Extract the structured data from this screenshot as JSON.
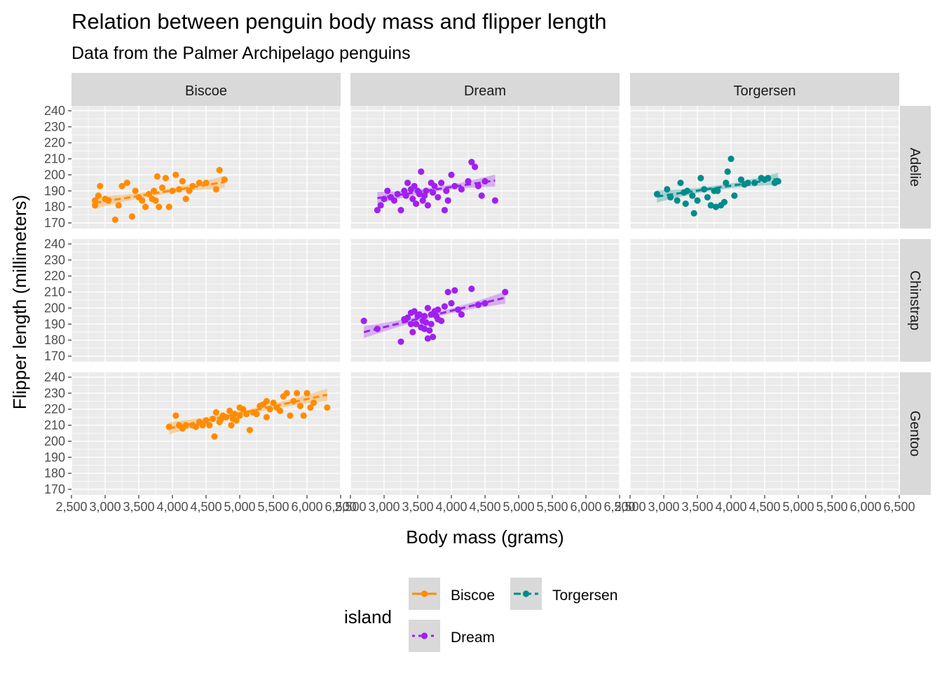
{
  "chart_data": {
    "type": "scatter",
    "title": "Relation between penguin body mass and flipper length",
    "subtitle": "Data from the Palmer Archipelago penguins",
    "xlabel": "Body mass (grams)",
    "ylabel": "Flipper length (millimeters)",
    "xlim": [
      2500,
      6500
    ],
    "ylim": [
      170,
      240
    ],
    "x_ticks": [
      2500,
      3000,
      3500,
      4000,
      4500,
      5000,
      5500,
      6000,
      6500
    ],
    "x_tick_labels": [
      "2,500",
      "3,000",
      "3,500",
      "4,000",
      "4,500",
      "5,000",
      "5,500",
      "6,000",
      "6,500"
    ],
    "y_ticks": [
      170,
      180,
      190,
      200,
      210,
      220,
      230,
      240
    ],
    "y_tick_labels": [
      "170",
      "180",
      "190",
      "200",
      "210",
      "220",
      "230",
      "240"
    ],
    "grid": true,
    "facet_cols": [
      "Biscoe",
      "Dream",
      "Torgersen"
    ],
    "facet_rows": [
      "Adelie",
      "Chinstrap",
      "Gentoo"
    ],
    "legend": {
      "title": "island",
      "position": "bottom",
      "entries": [
        {
          "label": "Biscoe",
          "color": "#ff8c00"
        },
        {
          "label": "Dream",
          "color": "#a020f0"
        },
        {
          "label": "Torgersen",
          "color": "#008b8b"
        }
      ]
    },
    "panels": [
      {
        "row": "Adelie",
        "col": "Biscoe",
        "color": "#ff8c00",
        "trend": {
          "x": [
            2850,
            4775
          ],
          "y": [
            182.5,
            195.5
          ]
        },
        "points": [
          [
            2850,
            181
          ],
          [
            2850,
            184
          ],
          [
            2900,
            187
          ],
          [
            2925,
            193
          ],
          [
            3000,
            185
          ],
          [
            3050,
            184
          ],
          [
            3150,
            172
          ],
          [
            3200,
            181
          ],
          [
            3250,
            193
          ],
          [
            3325,
            195
          ],
          [
            3400,
            174
          ],
          [
            3450,
            190
          ],
          [
            3500,
            186
          ],
          [
            3550,
            184
          ],
          [
            3600,
            180
          ],
          [
            3650,
            188
          ],
          [
            3700,
            185
          ],
          [
            3725,
            190
          ],
          [
            3750,
            184
          ],
          [
            3775,
            199
          ],
          [
            3800,
            180
          ],
          [
            3850,
            192
          ],
          [
            3900,
            198
          ],
          [
            3950,
            180
          ],
          [
            4000,
            190
          ],
          [
            4050,
            200
          ],
          [
            4100,
            191
          ],
          [
            4150,
            196
          ],
          [
            4200,
            185
          ],
          [
            4250,
            190
          ],
          [
            4300,
            193
          ],
          [
            4400,
            195
          ],
          [
            4500,
            195
          ],
          [
            4650,
            191
          ],
          [
            4700,
            203
          ],
          [
            4775,
            197
          ]
        ]
      },
      {
        "row": "Adelie",
        "col": "Dream",
        "color": "#a020f0",
        "trend": {
          "x": [
            2900,
            4650
          ],
          "y": [
            185.5,
            196.5
          ]
        },
        "points": [
          [
            2900,
            178
          ],
          [
            2950,
            181
          ],
          [
            3000,
            185
          ],
          [
            3050,
            190
          ],
          [
            3100,
            186
          ],
          [
            3150,
            184
          ],
          [
            3200,
            188
          ],
          [
            3250,
            178
          ],
          [
            3300,
            190
          ],
          [
            3325,
            187
          ],
          [
            3350,
            195
          ],
          [
            3400,
            191
          ],
          [
            3425,
            185
          ],
          [
            3450,
            193
          ],
          [
            3475,
            182
          ],
          [
            3500,
            190
          ],
          [
            3525,
            188
          ],
          [
            3550,
            202
          ],
          [
            3575,
            184
          ],
          [
            3600,
            187
          ],
          [
            3625,
            190
          ],
          [
            3650,
            181
          ],
          [
            3700,
            195
          ],
          [
            3725,
            189
          ],
          [
            3750,
            193
          ],
          [
            3800,
            186
          ],
          [
            3850,
            195
          ],
          [
            3900,
            178
          ],
          [
            3925,
            190
          ],
          [
            3950,
            184
          ],
          [
            4000,
            200
          ],
          [
            4050,
            193
          ],
          [
            4150,
            191
          ],
          [
            4250,
            196
          ],
          [
            4300,
            208
          ],
          [
            4350,
            205
          ],
          [
            4400,
            193
          ],
          [
            4450,
            187
          ],
          [
            4500,
            196
          ],
          [
            4650,
            184
          ]
        ]
      },
      {
        "row": "Adelie",
        "col": "Torgersen",
        "color": "#008b8b",
        "trend": {
          "x": [
            2900,
            4700
          ],
          "y": [
            186.5,
            197.5
          ]
        },
        "points": [
          [
            2900,
            188
          ],
          [
            3050,
            191
          ],
          [
            3100,
            186
          ],
          [
            3200,
            184
          ],
          [
            3250,
            195
          ],
          [
            3300,
            189
          ],
          [
            3325,
            182
          ],
          [
            3350,
            190
          ],
          [
            3425,
            187
          ],
          [
            3450,
            176
          ],
          [
            3500,
            184
          ],
          [
            3550,
            198
          ],
          [
            3600,
            191
          ],
          [
            3650,
            186
          ],
          [
            3700,
            181
          ],
          [
            3750,
            190
          ],
          [
            3775,
            180
          ],
          [
            3800,
            190
          ],
          [
            3850,
            181
          ],
          [
            3900,
            183
          ],
          [
            3925,
            195
          ],
          [
            3950,
            202
          ],
          [
            4000,
            210
          ],
          [
            4050,
            187
          ],
          [
            4150,
            197
          ],
          [
            4200,
            194
          ],
          [
            4250,
            195
          ],
          [
            4350,
            195
          ],
          [
            4450,
            198
          ],
          [
            4500,
            197
          ],
          [
            4550,
            198
          ],
          [
            4650,
            195
          ],
          [
            4700,
            196
          ]
        ]
      },
      {
        "row": "Chinstrap",
        "col": "Dream",
        "color": "#a020f0",
        "trend": {
          "x": [
            2700,
            4800
          ],
          "y": [
            185,
            206.5
          ]
        },
        "points": [
          [
            2700,
            192
          ],
          [
            2900,
            187
          ],
          [
            3250,
            179
          ],
          [
            3300,
            193
          ],
          [
            3350,
            194
          ],
          [
            3400,
            190
          ],
          [
            3400,
            197
          ],
          [
            3425,
            185
          ],
          [
            3450,
            198
          ],
          [
            3475,
            190
          ],
          [
            3500,
            195
          ],
          [
            3525,
            196
          ],
          [
            3550,
            188
          ],
          [
            3575,
            192
          ],
          [
            3600,
            187
          ],
          [
            3600,
            195
          ],
          [
            3625,
            191
          ],
          [
            3650,
            181
          ],
          [
            3650,
            200
          ],
          [
            3675,
            186
          ],
          [
            3700,
            190
          ],
          [
            3700,
            196
          ],
          [
            3725,
            182
          ],
          [
            3750,
            198
          ],
          [
            3775,
            195
          ],
          [
            3800,
            199
          ],
          [
            3800,
            193
          ],
          [
            3850,
            192
          ],
          [
            3900,
            201
          ],
          [
            3950,
            210
          ],
          [
            4000,
            203
          ],
          [
            4050,
            211
          ],
          [
            4100,
            199
          ],
          [
            4150,
            196
          ],
          [
            4300,
            212
          ],
          [
            4400,
            202
          ],
          [
            4500,
            203
          ],
          [
            4800,
            210
          ]
        ]
      },
      {
        "row": "Gentoo",
        "col": "Biscoe",
        "color": "#ff8c00",
        "trend": {
          "x": [
            3950,
            6300
          ],
          "y": [
            208,
            229
          ]
        },
        "points": [
          [
            3950,
            209
          ],
          [
            4050,
            216
          ],
          [
            4100,
            210
          ],
          [
            4150,
            208
          ],
          [
            4200,
            210
          ],
          [
            4300,
            210
          ],
          [
            4350,
            209
          ],
          [
            4400,
            212
          ],
          [
            4450,
            210
          ],
          [
            4500,
            213
          ],
          [
            4550,
            210
          ],
          [
            4600,
            214
          ],
          [
            4625,
            203
          ],
          [
            4650,
            218
          ],
          [
            4700,
            212
          ],
          [
            4725,
            214
          ],
          [
            4750,
            216
          ],
          [
            4800,
            215
          ],
          [
            4850,
            219
          ],
          [
            4875,
            210
          ],
          [
            4900,
            214
          ],
          [
            4925,
            217
          ],
          [
            4950,
            213
          ],
          [
            5000,
            216
          ],
          [
            5000,
            221
          ],
          [
            5050,
            220
          ],
          [
            5100,
            217
          ],
          [
            5150,
            207
          ],
          [
            5200,
            218
          ],
          [
            5250,
            217
          ],
          [
            5300,
            222
          ],
          [
            5350,
            223
          ],
          [
            5400,
            215
          ],
          [
            5400,
            225
          ],
          [
            5450,
            220
          ],
          [
            5500,
            224
          ],
          [
            5550,
            221
          ],
          [
            5600,
            219
          ],
          [
            5650,
            228
          ],
          [
            5700,
            230
          ],
          [
            5750,
            216
          ],
          [
            5800,
            225
          ],
          [
            5850,
            230
          ],
          [
            5900,
            222
          ],
          [
            5950,
            216
          ],
          [
            6000,
            230
          ],
          [
            6050,
            221
          ],
          [
            6100,
            224
          ],
          [
            6300,
            221
          ]
        ]
      }
    ]
  }
}
